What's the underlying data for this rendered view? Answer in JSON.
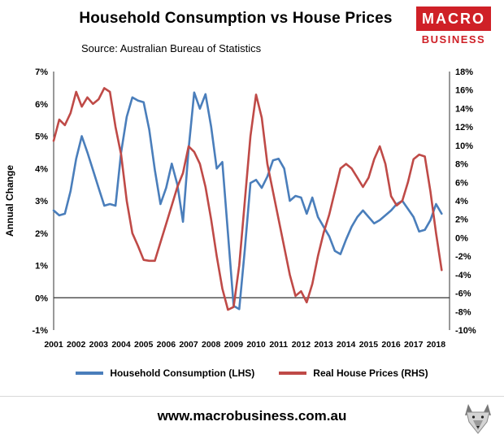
{
  "header": {
    "title": "Household Consumption vs House Prices",
    "subtitle": "Source: Australian Bureau of Statistics",
    "logo": {
      "top": "MACRO",
      "bottom": "BUSINESS",
      "color": "#cf2027"
    }
  },
  "chart_data": {
    "type": "line",
    "title": "Household Consumption vs House Prices",
    "ylabel_left": "Annual Change",
    "x_start": 2001,
    "x_step": 0.25,
    "x_tick_labels": [
      "2001",
      "2002",
      "2003",
      "2004",
      "2005",
      "2006",
      "2007",
      "2008",
      "2009",
      "2010",
      "2011",
      "2012",
      "2013",
      "2014",
      "2015",
      "2016",
      "2017",
      "2018"
    ],
    "axes": {
      "left": {
        "min": -1,
        "max": 7,
        "tick_step": 1,
        "format": "percent"
      },
      "right": {
        "min": -10,
        "max": 18,
        "tick_step": 2,
        "format": "percent"
      }
    },
    "grid": false,
    "legend_position": "bottom",
    "series": [
      {
        "name": "Household Consumption (LHS)",
        "axis": "left",
        "color": "#4a7ebb",
        "values": [
          2.7,
          2.55,
          2.6,
          3.3,
          4.3,
          5.0,
          4.5,
          3.95,
          3.4,
          2.85,
          2.9,
          2.85,
          4.5,
          5.6,
          6.2,
          6.1,
          6.05,
          5.2,
          3.95,
          2.9,
          3.4,
          4.15,
          3.5,
          2.35,
          4.6,
          6.35,
          5.85,
          6.3,
          5.3,
          4.0,
          4.2,
          2.0,
          -0.25,
          -0.35,
          1.5,
          3.55,
          3.65,
          3.4,
          3.75,
          4.25,
          4.3,
          4.0,
          3.0,
          3.15,
          3.1,
          2.6,
          3.1,
          2.5,
          2.2,
          1.9,
          1.45,
          1.35,
          1.8,
          2.2,
          2.5,
          2.7,
          2.5,
          2.3,
          2.4,
          2.55,
          2.7,
          2.9,
          3.0,
          2.75,
          2.5,
          2.05,
          2.1,
          2.4,
          2.9,
          2.6
        ]
      },
      {
        "name": "Real House Prices (RHS)",
        "axis": "right",
        "color": "#bf4a47",
        "values": [
          10.5,
          12.8,
          12.2,
          13.5,
          15.8,
          14.2,
          15.2,
          14.5,
          15.0,
          16.2,
          15.8,
          12.0,
          9.0,
          4.0,
          0.5,
          -0.9,
          -2.4,
          -2.5,
          -2.5,
          -0.5,
          1.5,
          3.5,
          5.5,
          7.0,
          9.9,
          9.3,
          8.0,
          5.5,
          2.0,
          -2.0,
          -5.5,
          -7.8,
          -7.5,
          -3.0,
          4.0,
          11.0,
          15.5,
          13.0,
          8.0,
          5.0,
          2.0,
          -1.0,
          -4.0,
          -6.3,
          -5.8,
          -7.0,
          -5.0,
          -2.0,
          0.5,
          2.5,
          5.0,
          7.5,
          8.0,
          7.5,
          6.5,
          5.5,
          6.5,
          8.5,
          9.9,
          8.0,
          4.5,
          3.5,
          4.0,
          6.0,
          8.5,
          9.0,
          8.8,
          5.0,
          0.5,
          -3.5
        ]
      }
    ]
  },
  "legend": {
    "items": [
      {
        "label": "Household Consumption (LHS)",
        "color": "#4a7ebb"
      },
      {
        "label": "Real House Prices (RHS)",
        "color": "#bf4a47"
      }
    ]
  },
  "footer": {
    "url": "www.macrobusiness.com.au"
  }
}
